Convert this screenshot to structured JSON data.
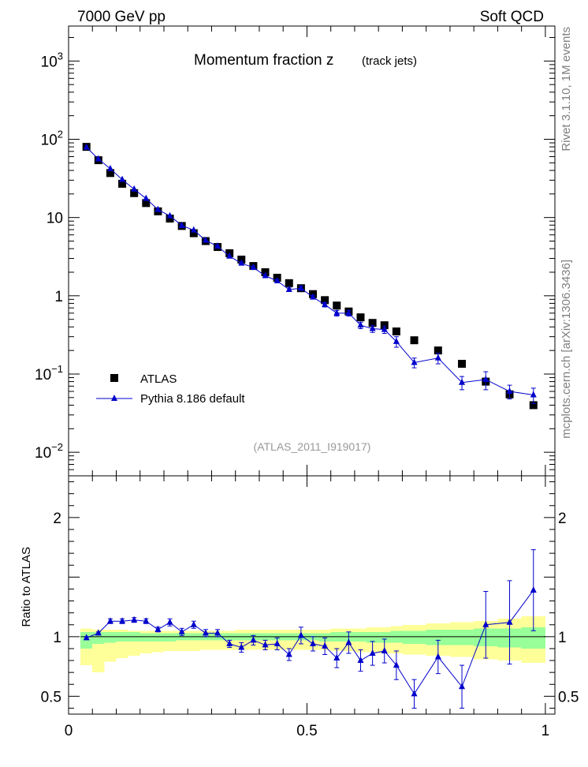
{
  "header": {
    "left": "7000 GeV pp",
    "right": "Soft QCD"
  },
  "side_labels": {
    "rivet": "Rivet 3.1.10,  1M events",
    "source": "mcplots.cern.ch [arXiv:1306.3436]"
  },
  "chart_data": [
    {
      "type": "scatter",
      "title": "Momentum fraction z",
      "subtitle": "(track jets)",
      "watermark": "(ATLAS_2011_I919017)",
      "yscale": "log",
      "xlim": [
        0,
        1.02
      ],
      "ylim": [
        0.005,
        2800
      ],
      "yticks": [
        {
          "value": 0.01,
          "base": "10",
          "exp": "−2"
        },
        {
          "value": 0.1,
          "base": "10",
          "exp": "−1"
        },
        {
          "value": 1,
          "base": "1",
          "exp": ""
        },
        {
          "value": 10,
          "base": "10",
          "exp": ""
        },
        {
          "value": 100,
          "base": "10",
          "exp": "2"
        },
        {
          "value": 1000,
          "base": "10",
          "exp": "3"
        }
      ],
      "legend": {
        "position": "bottom-left"
      },
      "series": [
        {
          "name": "ATLAS",
          "color": "#000000",
          "marker": "square",
          "x": [
            0.0375,
            0.0625,
            0.0875,
            0.1125,
            0.1375,
            0.1625,
            0.1875,
            0.2125,
            0.2375,
            0.2625,
            0.2875,
            0.3125,
            0.3375,
            0.3625,
            0.3875,
            0.4125,
            0.4375,
            0.4625,
            0.4875,
            0.5125,
            0.5375,
            0.5625,
            0.5875,
            0.6125,
            0.6375,
            0.6625,
            0.6875,
            0.725,
            0.775,
            0.825,
            0.875,
            0.925,
            0.975
          ],
          "y": [
            80,
            54,
            37,
            27,
            20.5,
            15.3,
            12,
            9.7,
            7.8,
            6.3,
            5.0,
            4.2,
            3.5,
            2.9,
            2.4,
            2.0,
            1.7,
            1.45,
            1.25,
            1.05,
            0.88,
            0.75,
            0.63,
            0.53,
            0.45,
            0.42,
            0.35,
            0.27,
            0.2,
            0.135,
            0.08,
            0.055,
            0.04
          ]
        },
        {
          "name": "Pythia 8.186 default",
          "color": "#0000cc",
          "marker": "triangle",
          "x": [
            0.0375,
            0.0625,
            0.0875,
            0.1125,
            0.1375,
            0.1625,
            0.1875,
            0.2125,
            0.2375,
            0.2625,
            0.2875,
            0.3125,
            0.3375,
            0.3625,
            0.3875,
            0.4125,
            0.4375,
            0.4625,
            0.4875,
            0.5125,
            0.5375,
            0.5625,
            0.5875,
            0.6125,
            0.6375,
            0.6625,
            0.6875,
            0.725,
            0.775,
            0.825,
            0.875,
            0.925,
            0.975
          ],
          "y": [
            79,
            56,
            42,
            30.5,
            23,
            17.5,
            12.6,
            10.5,
            7.9,
            6.9,
            5.1,
            4.3,
            3.2,
            2.6,
            2.3,
            1.8,
            1.55,
            1.2,
            1.25,
            0.96,
            0.77,
            0.6,
            0.6,
            0.42,
            0.38,
            0.37,
            0.26,
            0.14,
            0.16,
            0.078,
            0.085,
            0.06,
            0.054
          ],
          "yerr": [
            0.5,
            0.4,
            0.5,
            0.4,
            0.4,
            0.3,
            0.3,
            0.2,
            0.2,
            0.2,
            0.1,
            0.1,
            0.1,
            0.1,
            0.1,
            0.05,
            0.06,
            0.06,
            0.08,
            0.05,
            0.05,
            0.05,
            0.05,
            0.04,
            0.04,
            0.04,
            0.04,
            0.02,
            0.025,
            0.015,
            0.022,
            0.012,
            0.012
          ]
        }
      ]
    },
    {
      "type": "line",
      "ylabel": "Ratio to ATLAS",
      "xlim": [
        0,
        1.02
      ],
      "ylim": [
        0.35,
        2.35
      ],
      "yticks": [
        0.5,
        1,
        2
      ],
      "xticks": [
        0,
        0.5,
        1
      ],
      "band_edges": [
        0.025,
        0.05,
        0.075,
        0.1,
        0.125,
        0.15,
        0.175,
        0.2,
        0.225,
        0.25,
        0.275,
        0.3,
        0.325,
        0.35,
        0.375,
        0.4,
        0.425,
        0.45,
        0.475,
        0.5,
        0.525,
        0.55,
        0.575,
        0.6,
        0.625,
        0.65,
        0.675,
        0.7,
        0.75,
        0.8,
        0.85,
        0.9,
        0.95,
        1.0
      ],
      "band_yellow_low": [
        0.76,
        0.7,
        0.79,
        0.82,
        0.84,
        0.86,
        0.87,
        0.88,
        0.88,
        0.88,
        0.89,
        0.89,
        0.89,
        0.89,
        0.89,
        0.89,
        0.89,
        0.89,
        0.89,
        0.89,
        0.89,
        0.88,
        0.88,
        0.87,
        0.87,
        0.86,
        0.86,
        0.85,
        0.84,
        0.83,
        0.81,
        0.8,
        0.78
      ],
      "band_yellow_high": [
        1.07,
        1.06,
        1.06,
        1.06,
        1.05,
        1.05,
        1.05,
        1.05,
        1.05,
        1.05,
        1.05,
        1.05,
        1.05,
        1.06,
        1.06,
        1.06,
        1.06,
        1.06,
        1.06,
        1.06,
        1.06,
        1.07,
        1.07,
        1.07,
        1.08,
        1.08,
        1.09,
        1.1,
        1.11,
        1.12,
        1.13,
        1.15,
        1.17
      ],
      "band_green_low": [
        0.9,
        0.94,
        0.95,
        0.96,
        0.96,
        0.96,
        0.96,
        0.96,
        0.97,
        0.97,
        0.97,
        0.97,
        0.97,
        0.97,
        0.97,
        0.97,
        0.97,
        0.97,
        0.97,
        0.97,
        0.96,
        0.96,
        0.96,
        0.96,
        0.95,
        0.95,
        0.95,
        0.94,
        0.93,
        0.93,
        0.92,
        0.91,
        0.9
      ],
      "band_green_high": [
        1.04,
        1.04,
        1.04,
        1.04,
        1.04,
        1.03,
        1.03,
        1.03,
        1.03,
        1.03,
        1.03,
        1.03,
        1.03,
        1.03,
        1.03,
        1.03,
        1.03,
        1.03,
        1.03,
        1.03,
        1.03,
        1.04,
        1.04,
        1.04,
        1.04,
        1.04,
        1.05,
        1.05,
        1.06,
        1.06,
        1.07,
        1.07,
        1.08
      ],
      "band_colors": {
        "yellow": "#ffff99",
        "green": "#99ff99"
      },
      "series": [
        {
          "color": "#0000cc",
          "x": [
            0.0375,
            0.0625,
            0.0875,
            0.1125,
            0.1375,
            0.1625,
            0.1875,
            0.2125,
            0.2375,
            0.2625,
            0.2875,
            0.3125,
            0.3375,
            0.3625,
            0.3875,
            0.4125,
            0.4375,
            0.4625,
            0.4875,
            0.5125,
            0.5375,
            0.5625,
            0.5875,
            0.6125,
            0.6375,
            0.6625,
            0.6875,
            0.725,
            0.775,
            0.825,
            0.875,
            0.925,
            0.975
          ],
          "y": [
            0.99,
            1.03,
            1.13,
            1.13,
            1.14,
            1.13,
            1.06,
            1.12,
            1.04,
            1.1,
            1.03,
            1.03,
            0.94,
            0.91,
            0.97,
            0.93,
            0.94,
            0.85,
            1.01,
            0.94,
            0.92,
            0.82,
            0.95,
            0.8,
            0.86,
            0.88,
            0.76,
            0.52,
            0.83,
            0.58,
            1.1,
            1.12,
            1.39
          ],
          "yerr": [
            0.01,
            0.01,
            0.02,
            0.02,
            0.02,
            0.02,
            0.02,
            0.03,
            0.03,
            0.03,
            0.03,
            0.03,
            0.03,
            0.04,
            0.04,
            0.04,
            0.05,
            0.05,
            0.07,
            0.06,
            0.07,
            0.08,
            0.09,
            0.09,
            0.1,
            0.1,
            0.12,
            0.12,
            0.14,
            0.18,
            0.28,
            0.35,
            0.34
          ]
        }
      ]
    }
  ]
}
